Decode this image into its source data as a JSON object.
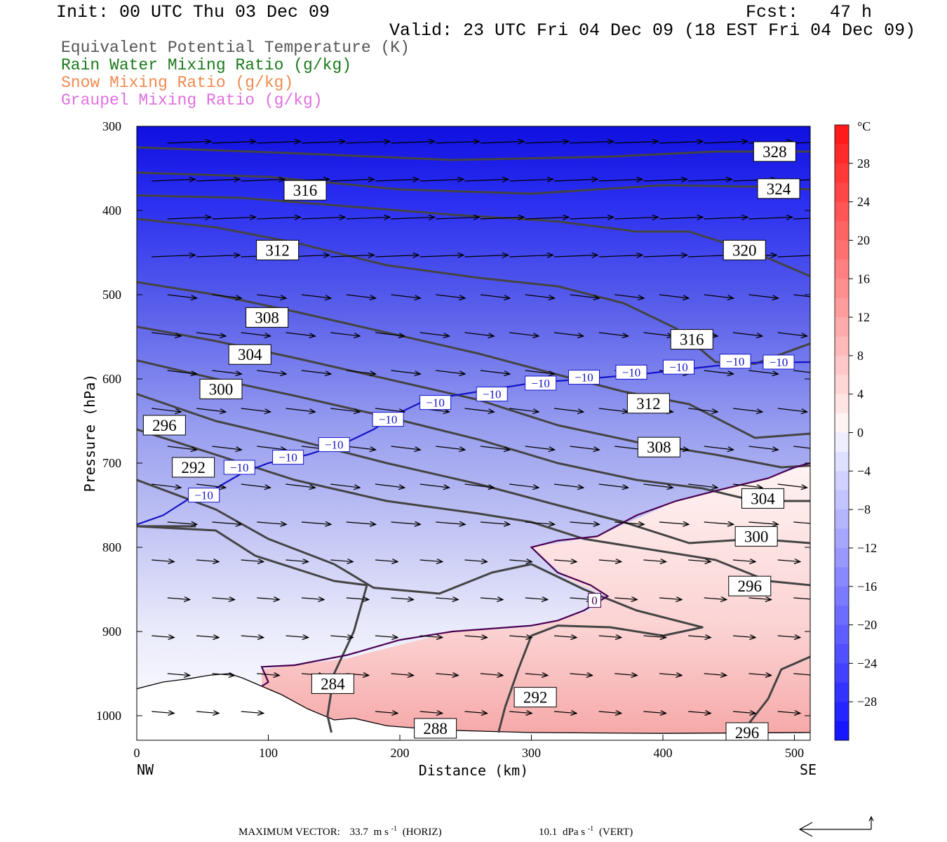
{
  "header": {
    "init": "Init: 00 UTC Thu 03 Dec 09",
    "fcst": "Fcst:   47 h",
    "valid": "Valid: 23 UTC Fri 04 Dec 09 (18 EST Fri 04 Dec 09)"
  },
  "legend": [
    {
      "label": "Equivalent Potential Temperature (K)",
      "color": "#555555"
    },
    {
      "label": "Rain Water Mixing Ratio (g/kg)",
      "color": "#1a7a1a"
    },
    {
      "label": "Snow Mixing Ratio (g/kg)",
      "color": "#f08a50"
    },
    {
      "label": "Graupel Mixing Ratio (g/kg)",
      "color": "#e070e0"
    }
  ],
  "chart_data": {
    "type": "cross-section",
    "xlabel": "Distance (km)",
    "ylabel": "Pressure (hPa)",
    "xlim": [
      0,
      512
    ],
    "ylim": [
      1020,
      300
    ],
    "x_ticks": [
      "0",
      "100",
      "200",
      "300",
      "400",
      "500"
    ],
    "y_ticks": [
      "300",
      "400",
      "500",
      "600",
      "700",
      "800",
      "900",
      "1000"
    ],
    "x_end_labels": {
      "left": "NW",
      "right": "SE"
    },
    "colorbar": {
      "unit": "°C",
      "labels": [
        "28",
        "24",
        "20",
        "16",
        "12",
        "8",
        "4",
        "0",
        "−4",
        "−8",
        "−12",
        "−16",
        "−20",
        "−24",
        "−28"
      ],
      "range": [
        -32,
        32
      ]
    },
    "theta_e_contours": [
      {
        "label": "328",
        "points": [
          [
            0,
            325
          ],
          [
            120,
            332
          ],
          [
            240,
            340
          ],
          [
            360,
            336
          ],
          [
            440,
            330
          ],
          [
            512,
            330
          ]
        ]
      },
      {
        "label": "324",
        "points": [
          [
            0,
            355
          ],
          [
            100,
            360
          ],
          [
            200,
            375
          ],
          [
            300,
            380
          ],
          [
            400,
            370
          ],
          [
            480,
            372
          ],
          [
            512,
            375
          ]
        ]
      },
      {
        "label": "320",
        "points": [
          [
            0,
            382
          ],
          [
            80,
            385
          ],
          [
            160,
            395
          ],
          [
            240,
            405
          ],
          [
            320,
            413
          ],
          [
            380,
            425
          ],
          [
            420,
            425
          ],
          [
            470,
            450
          ],
          [
            512,
            478
          ]
        ]
      },
      {
        "label": "316",
        "points": [
          [
            0,
            410
          ],
          [
            60,
            420
          ],
          [
            120,
            438
          ],
          [
            190,
            465
          ],
          [
            260,
            480
          ],
          [
            320,
            490
          ],
          [
            370,
            510
          ],
          [
            410,
            540
          ],
          [
            440,
            580
          ],
          [
            470,
            582
          ],
          [
            512,
            558
          ]
        ]
      },
      {
        "label": "312",
        "points": [
          [
            0,
            485
          ],
          [
            60,
            500
          ],
          [
            120,
            520
          ],
          [
            190,
            545
          ],
          [
            260,
            570
          ],
          [
            320,
            595
          ],
          [
            370,
            615
          ],
          [
            420,
            630
          ],
          [
            470,
            670
          ],
          [
            512,
            665
          ]
        ]
      },
      {
        "label": "308",
        "points": [
          [
            0,
            538
          ],
          [
            60,
            555
          ],
          [
            120,
            575
          ],
          [
            190,
            600
          ],
          [
            260,
            625
          ],
          [
            320,
            655
          ],
          [
            380,
            675
          ],
          [
            440,
            690
          ],
          [
            490,
            705
          ],
          [
            512,
            703
          ]
        ]
      },
      {
        "label": "304",
        "points": [
          [
            0,
            578
          ],
          [
            60,
            600
          ],
          [
            120,
            620
          ],
          [
            190,
            645
          ],
          [
            260,
            672
          ],
          [
            320,
            700
          ],
          [
            380,
            720
          ],
          [
            430,
            730
          ],
          [
            470,
            745
          ],
          [
            512,
            745
          ]
        ]
      },
      {
        "label": "300",
        "points": [
          [
            0,
            618
          ],
          [
            60,
            650
          ],
          [
            120,
            672
          ],
          [
            190,
            700
          ],
          [
            260,
            725
          ],
          [
            320,
            750
          ],
          [
            370,
            770
          ],
          [
            420,
            795
          ],
          [
            470,
            790
          ],
          [
            512,
            795
          ]
        ]
      },
      {
        "label": "296",
        "points": [
          [
            0,
            660
          ],
          [
            60,
            690
          ],
          [
            120,
            720
          ],
          [
            190,
            745
          ],
          [
            260,
            760
          ],
          [
            300,
            770
          ],
          [
            340,
            790
          ],
          [
            400,
            805
          ],
          [
            440,
            815
          ],
          [
            480,
            840
          ],
          [
            512,
            845
          ]
        ]
      },
      {
        "label": "292",
        "points": [
          [
            0,
            720
          ],
          [
            60,
            755
          ],
          [
            100,
            790
          ],
          [
            150,
            820
          ],
          [
            180,
            848
          ],
          [
            230,
            855
          ],
          [
            270,
            830
          ],
          [
            300,
            820
          ],
          [
            340,
            850
          ],
          [
            380,
            875
          ],
          [
            430,
            895
          ],
          [
            400,
            905
          ],
          [
            360,
            895
          ],
          [
            320,
            893
          ],
          [
            300,
            905
          ],
          [
            290,
            945
          ],
          [
            280,
            990
          ],
          [
            275,
            1020
          ]
        ]
      },
      {
        "label": "288",
        "points": [
          [
            0,
            775
          ],
          [
            60,
            780
          ],
          [
            90,
            810
          ],
          [
            130,
            830
          ],
          [
            150,
            840
          ],
          [
            175,
            845
          ],
          [
            165,
            900
          ],
          [
            150,
            950
          ],
          [
            145,
            1000
          ],
          [
            148,
            1020
          ]
        ]
      },
      {
        "label": "284",
        "points": [
          [
            0,
            775
          ],
          [
            45,
            775
          ]
        ]
      },
      {
        "label": "296b",
        "points": [
          [
            512,
            930
          ],
          [
            490,
            945
          ],
          [
            480,
            980
          ],
          [
            460,
            1020
          ]
        ]
      }
    ],
    "temperature_contours": [
      {
        "value": "−10",
        "color": "#1414c8",
        "points": [
          [
            0,
            773
          ],
          [
            20,
            762
          ],
          [
            40,
            742
          ],
          [
            60,
            730
          ],
          [
            80,
            712
          ],
          [
            100,
            700
          ],
          [
            130,
            690
          ],
          [
            160,
            675
          ],
          [
            180,
            660
          ],
          [
            200,
            640
          ],
          [
            220,
            625
          ],
          [
            260,
            615
          ],
          [
            300,
            605
          ],
          [
            340,
            600
          ],
          [
            380,
            595
          ],
          [
            420,
            588
          ],
          [
            460,
            581
          ],
          [
            512,
            580
          ]
        ]
      },
      {
        "value": "0",
        "color": "#4a0050",
        "points": [
          [
            512,
            700
          ],
          [
            500,
            705
          ],
          [
            480,
            718
          ],
          [
            440,
            733
          ],
          [
            410,
            745
          ],
          [
            380,
            762
          ],
          [
            350,
            787
          ],
          [
            320,
            792
          ],
          [
            300,
            800
          ],
          [
            320,
            830
          ],
          [
            345,
            845
          ],
          [
            358,
            858
          ],
          [
            340,
            875
          ],
          [
            320,
            887
          ],
          [
            300,
            893
          ],
          [
            240,
            900
          ],
          [
            200,
            910
          ],
          [
            160,
            928
          ],
          [
            120,
            940
          ],
          [
            95,
            942
          ],
          [
            100,
            960
          ],
          [
            95,
            965
          ]
        ]
      }
    ],
    "contour_labels": [
      {
        "text": "328",
        "x": 485,
        "p": 330
      },
      {
        "text": "324",
        "x": 488,
        "p": 374
      },
      {
        "text": "316",
        "x": 128,
        "p": 376
      },
      {
        "text": "312",
        "x": 107,
        "p": 447
      },
      {
        "text": "320",
        "x": 462,
        "p": 447
      },
      {
        "text": "308",
        "x": 99,
        "p": 527
      },
      {
        "text": "304",
        "x": 86,
        "p": 571
      },
      {
        "text": "316",
        "x": 422,
        "p": 553
      },
      {
        "text": "300",
        "x": 64,
        "p": 612
      },
      {
        "text": "312",
        "x": 389,
        "p": 629
      },
      {
        "text": "296",
        "x": 21,
        "p": 655
      },
      {
        "text": "308",
        "x": 397,
        "p": 681
      },
      {
        "text": "292",
        "x": 43,
        "p": 705
      },
      {
        "text": "304",
        "x": 476,
        "p": 742
      },
      {
        "text": "300",
        "x": 471,
        "p": 787
      },
      {
        "text": "296",
        "x": 466,
        "p": 846
      },
      {
        "text": "284",
        "x": 149,
        "p": 962
      },
      {
        "text": "292",
        "x": 303,
        "p": 978
      },
      {
        "text": "288",
        "x": 227,
        "p": 1015
      },
      {
        "text": "296",
        "x": 464,
        "p": 1020
      }
    ],
    "temp_labels": [
      {
        "text": "−10",
        "x": 51,
        "p": 738
      },
      {
        "text": "−10",
        "x": 78,
        "p": 705
      },
      {
        "text": "−10",
        "x": 115,
        "p": 693
      },
      {
        "text": "−10",
        "x": 150,
        "p": 678
      },
      {
        "text": "−10",
        "x": 191,
        "p": 648
      },
      {
        "text": "−10",
        "x": 227,
        "p": 628
      },
      {
        "text": "−10",
        "x": 270,
        "p": 618
      },
      {
        "text": "−10",
        "x": 307,
        "p": 605
      },
      {
        "text": "−10",
        "x": 340,
        "p": 598
      },
      {
        "text": "−10",
        "x": 376,
        "p": 592
      },
      {
        "text": "−10",
        "x": 412,
        "p": 586
      },
      {
        "text": "−10",
        "x": 455,
        "p": 579
      },
      {
        "text": "−10",
        "x": 488,
        "p": 580
      },
      {
        "text": "0",
        "x": 348,
        "p": 863
      }
    ],
    "wind_vectors": {
      "note": "flow vectors, mostly westerly/northwesterly"
    },
    "max_vector": {
      "prefix": "MAXIMUM VECTOR:",
      "horiz_value": "33.7",
      "horiz_unit_base": "m s",
      "horiz_exp": "-1",
      "horiz_tag": "(HORIZ)",
      "vert_value": "10.1",
      "vert_unit_base": "dPa s",
      "vert_exp": "-1",
      "vert_tag": "(VERT)"
    }
  }
}
